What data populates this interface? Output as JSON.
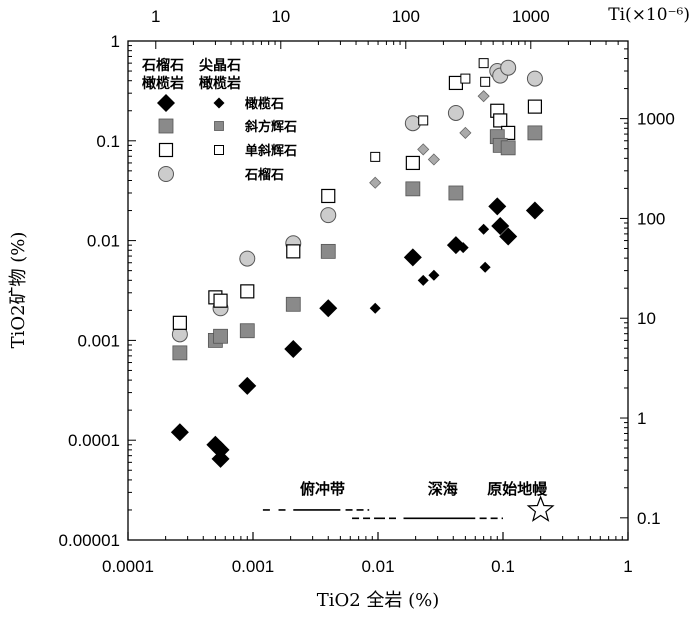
{
  "chart_data": {
    "type": "scatter",
    "x_scale": "log",
    "y_scale": "log",
    "xlabel": "TiO2 全岩 (%)",
    "ylabel": "TiO2矿物 (%)",
    "xlim": [
      0.0001,
      1
    ],
    "ylim": [
      1e-05,
      1
    ],
    "x_ticks": [
      "0.0001",
      "0.001",
      "0.01",
      "0.1",
      "1"
    ],
    "y_ticks": [
      "0.00001",
      "0.0001",
      "0.001",
      "0.01",
      "0.1",
      "1"
    ],
    "top_axis": {
      "label": "Ti(×10⁻⁶)",
      "ticks": [
        {
          "label": "1",
          "value": 1
        },
        {
          "label": "10",
          "value": 10
        },
        {
          "label": "100",
          "value": 100
        },
        {
          "label": "1000",
          "value": 1000
        }
      ],
      "tio2_per_ppm": 0.00016681
    },
    "right_axis": {
      "ticks": [
        {
          "label": "1000",
          "value": 1000
        },
        {
          "label": "100",
          "value": 100
        },
        {
          "label": "10",
          "value": 10
        },
        {
          "label": "1",
          "value": 1
        },
        {
          "label": "0.1",
          "value": 0.1
        }
      ],
      "tio2_per_ppm": 0.00016681
    },
    "legend": {
      "col1_header": [
        "石榴石",
        "橄榄岩"
      ],
      "col2_header": [
        "尖晶石",
        "橄榄岩"
      ],
      "rows": [
        {
          "marker": "diamond",
          "label": "橄榄石"
        },
        {
          "marker": "gray-square",
          "label": "斜方辉石"
        },
        {
          "marker": "open-square",
          "label": "单斜辉石"
        },
        {
          "marker": "gray-circle",
          "label": "石榴石"
        }
      ]
    },
    "annotations": {
      "subduction": "俯冲带",
      "deep_sea": "深海",
      "primitive_mantle": "原始地幔",
      "primitive_mantle_x": 0.2,
      "primitive_mantle_y": 2e-05
    },
    "series": [
      {
        "name": "石榴石橄榄岩 橄榄石",
        "marker": "diamond-large",
        "points": [
          [
            0.00026,
            0.00012
          ],
          [
            0.0005,
            9e-05
          ],
          [
            0.00055,
            8e-05
          ],
          [
            0.00055,
            6.5e-05
          ],
          [
            0.0009,
            0.00035
          ],
          [
            0.0021,
            0.00082
          ],
          [
            0.004,
            0.0021
          ],
          [
            0.019,
            0.0068
          ],
          [
            0.042,
            0.009
          ],
          [
            0.09,
            0.022
          ],
          [
            0.095,
            0.014
          ],
          [
            0.11,
            0.011
          ],
          [
            0.18,
            0.02
          ]
        ]
      },
      {
        "name": "尖晶石橄榄岩 橄榄石",
        "marker": "diamond-small",
        "points": [
          [
            0.0095,
            0.0021
          ],
          [
            0.023,
            0.004
          ],
          [
            0.028,
            0.0045
          ],
          [
            0.048,
            0.0085
          ],
          [
            0.07,
            0.013
          ],
          [
            0.072,
            0.0054
          ]
        ]
      },
      {
        "name": "石榴石橄榄岩 斜方辉石",
        "marker": "square-gray-large",
        "points": [
          [
            0.00026,
            0.00075
          ],
          [
            0.0005,
            0.001
          ],
          [
            0.00055,
            0.0011
          ],
          [
            0.0009,
            0.00125
          ],
          [
            0.0021,
            0.0023
          ],
          [
            0.004,
            0.0078
          ],
          [
            0.019,
            0.033
          ],
          [
            0.042,
            0.03
          ],
          [
            0.09,
            0.11
          ],
          [
            0.095,
            0.09
          ],
          [
            0.11,
            0.085
          ],
          [
            0.18,
            0.12
          ]
        ]
      },
      {
        "name": "尖晶石橄榄岩 斜方辉石",
        "marker": "square-gray-small",
        "points": []
      },
      {
        "name": "石榴石橄榄岩 单斜辉石",
        "marker": "square-open-large",
        "points": [
          [
            0.00026,
            0.0015
          ],
          [
            0.0005,
            0.0027
          ],
          [
            0.00055,
            0.0025
          ],
          [
            0.0009,
            0.0031
          ],
          [
            0.0021,
            0.0078
          ],
          [
            0.004,
            0.028
          ],
          [
            0.019,
            0.06
          ],
          [
            0.042,
            0.38
          ],
          [
            0.09,
            0.2
          ],
          [
            0.095,
            0.16
          ],
          [
            0.11,
            0.12
          ],
          [
            0.18,
            0.22
          ]
        ]
      },
      {
        "name": "尖晶石橄榄岩 单斜辉石",
        "marker": "square-open-small",
        "points": [
          [
            0.0095,
            0.069
          ],
          [
            0.023,
            0.16
          ],
          [
            0.05,
            0.42
          ],
          [
            0.07,
            0.6
          ],
          [
            0.072,
            0.39
          ]
        ]
      },
      {
        "name": "石榴石橄榄岩 石榴石",
        "marker": "circle-gray",
        "points": [
          [
            0.00026,
            0.00115
          ],
          [
            0.00055,
            0.0021
          ],
          [
            0.0009,
            0.0066
          ],
          [
            0.0021,
            0.0094
          ],
          [
            0.004,
            0.018
          ],
          [
            0.019,
            0.15
          ],
          [
            0.042,
            0.19
          ],
          [
            0.09,
            0.5
          ],
          [
            0.095,
            0.45
          ],
          [
            0.11,
            0.54
          ],
          [
            0.18,
            0.42
          ]
        ]
      },
      {
        "name": "尖晶石橄榄岩 石榴石",
        "marker": "diamond-gray-small",
        "points": [
          [
            0.0095,
            0.038
          ],
          [
            0.023,
            0.082
          ],
          [
            0.028,
            0.065
          ],
          [
            0.05,
            0.12
          ],
          [
            0.07,
            0.28
          ]
        ]
      }
    ],
    "ranges": [
      {
        "name": "subduction",
        "y": 2e-05,
        "segments": [
          [
            0.0012,
            0.0014,
            "dashed"
          ],
          [
            0.0016,
            0.0019,
            "dashed"
          ],
          [
            0.0021,
            0.005,
            "solid"
          ],
          [
            0.0055,
            0.0085,
            "dashed"
          ]
        ]
      },
      {
        "name": "deep-sea",
        "y": 1.65e-05,
        "segments": [
          [
            0.0062,
            0.01,
            "dashed"
          ],
          [
            0.01,
            0.015,
            "dashed"
          ],
          [
            0.016,
            0.06,
            "solid"
          ],
          [
            0.065,
            0.1,
            "dashed"
          ]
        ]
      }
    ]
  }
}
